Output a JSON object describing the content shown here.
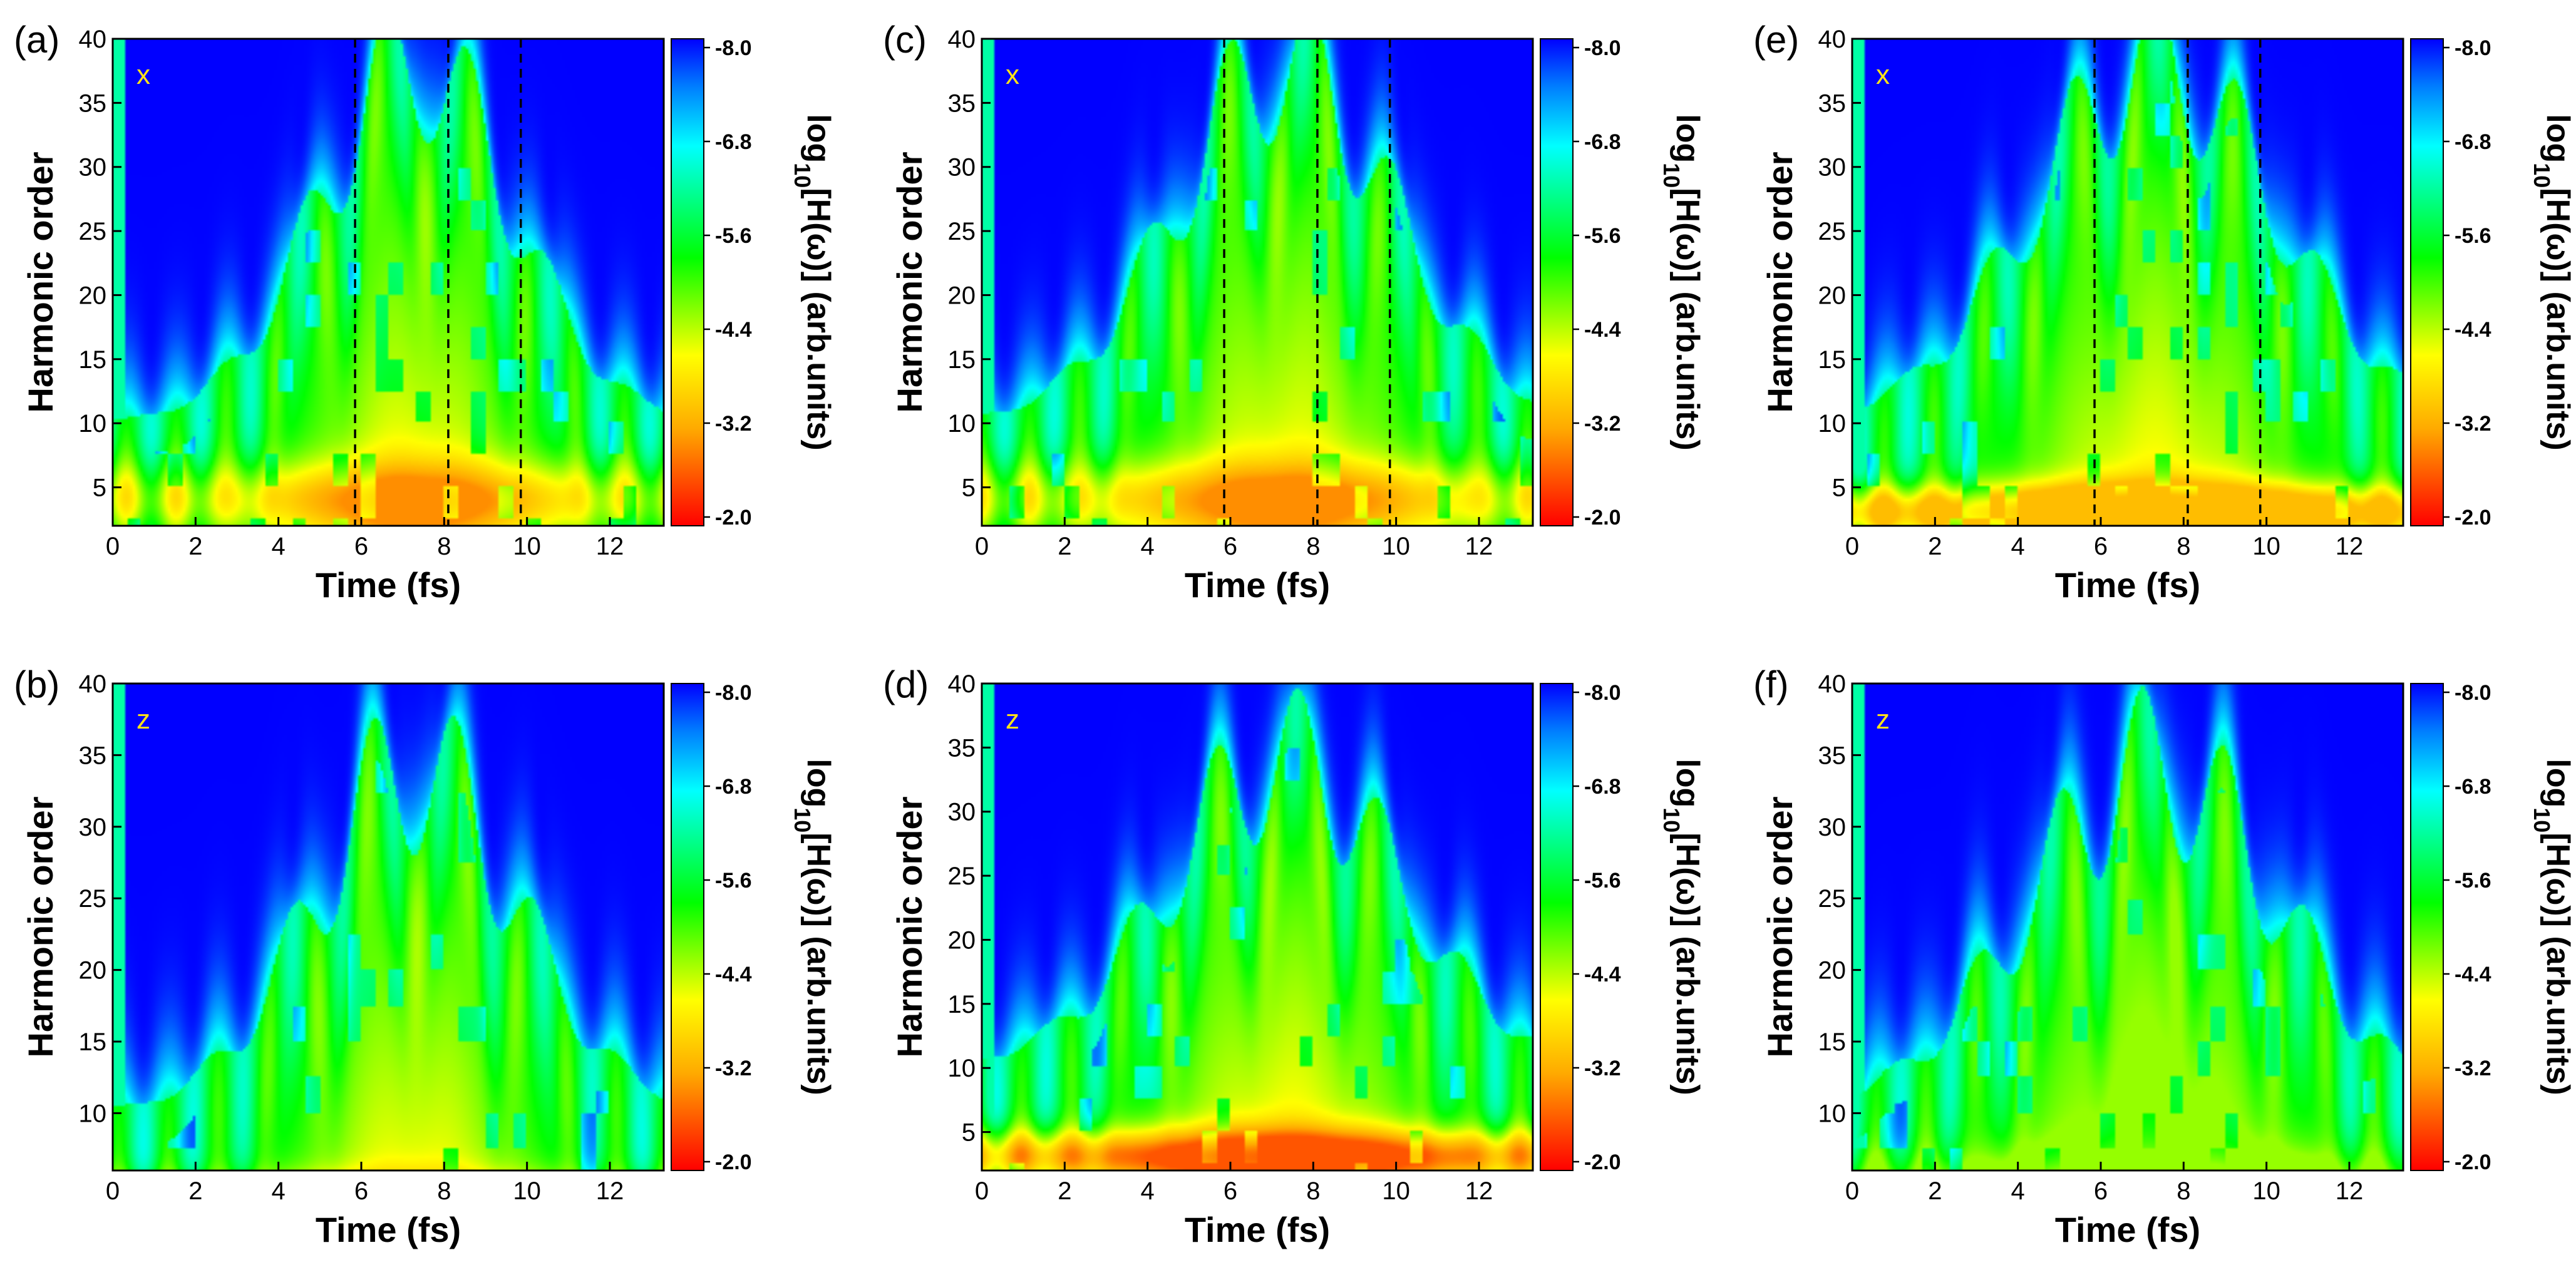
{
  "chart_data": [
    {
      "id": "a",
      "type": "heatmap",
      "panel_label": "(a)",
      "component": "x",
      "xlabel": "Time (fs)",
      "ylabel": "Harmonic order",
      "xlim": [
        0,
        13.3
      ],
      "ylim": [
        2,
        40
      ],
      "x_ticks": [
        0,
        2,
        4,
        6,
        8,
        10,
        12
      ],
      "y_ticks": [
        5,
        10,
        15,
        20,
        25,
        30,
        35,
        40
      ],
      "dashed_lines_x": [
        5.85,
        8.1,
        9.85
      ],
      "colorbar": {
        "title": "log10[H(ω)] (arb.units)",
        "ticks": [
          "-8.0",
          "-6.8",
          "-5.6",
          "-4.4",
          "-3.2",
          "-2.0"
        ]
      },
      "peak_level": -3.0
    },
    {
      "id": "b",
      "type": "heatmap",
      "panel_label": "(b)",
      "component": "z",
      "xlabel": "Time (fs)",
      "ylabel": "Harmonic order",
      "xlim": [
        0,
        13.3
      ],
      "ylim": [
        6,
        40
      ],
      "x_ticks": [
        0,
        2,
        4,
        6,
        8,
        10,
        12
      ],
      "y_ticks": [
        10,
        15,
        20,
        25,
        30,
        35,
        40
      ],
      "dashed_lines_x": [],
      "colorbar": {
        "title": "log10[H(ω)] (arb.units)",
        "ticks": [
          "-8.0",
          "-6.8",
          "-5.6",
          "-4.4",
          "-3.2",
          "-2.0"
        ]
      },
      "peak_level": -3.8
    },
    {
      "id": "c",
      "type": "heatmap",
      "panel_label": "(c)",
      "component": "x",
      "xlabel": "Time (fs)",
      "ylabel": "Harmonic order",
      "xlim": [
        0,
        13.3
      ],
      "ylim": [
        2,
        40
      ],
      "x_ticks": [
        0,
        2,
        4,
        6,
        8,
        10,
        12
      ],
      "y_ticks": [
        5,
        10,
        15,
        20,
        25,
        30,
        35,
        40
      ],
      "dashed_lines_x": [
        5.85,
        8.1,
        9.85
      ],
      "colorbar": {
        "title": "log10[H(ω)] (arb.units)",
        "ticks": [
          "-8.0",
          "-6.8",
          "-5.6",
          "-4.4",
          "-3.2",
          "-2.0"
        ]
      },
      "peak_level": -3.0
    },
    {
      "id": "d",
      "type": "heatmap",
      "panel_label": "(d)",
      "component": "z",
      "xlabel": "Time (fs)",
      "ylabel": "Harmonic order",
      "xlim": [
        0,
        13.3
      ],
      "ylim": [
        2,
        40
      ],
      "x_ticks": [
        0,
        2,
        4,
        6,
        8,
        10,
        12
      ],
      "y_ticks": [
        5,
        10,
        15,
        20,
        25,
        30,
        35,
        40
      ],
      "dashed_lines_x": [],
      "colorbar": {
        "title": "log10[H(ω)] (arb.units)",
        "ticks": [
          "-8.0",
          "-6.8",
          "-5.6",
          "-4.4",
          "-3.2",
          "-2.0"
        ]
      },
      "peak_level": -2.6
    },
    {
      "id": "e",
      "type": "heatmap",
      "panel_label": "(e)",
      "component": "x",
      "xlabel": "Time (fs)",
      "ylabel": "Harmonic order",
      "xlim": [
        0,
        13.3
      ],
      "ylim": [
        2,
        40
      ],
      "x_ticks": [
        0,
        2,
        4,
        6,
        8,
        10,
        12
      ],
      "y_ticks": [
        5,
        10,
        15,
        20,
        25,
        30,
        35,
        40
      ],
      "dashed_lines_x": [
        5.85,
        8.1,
        9.85
      ],
      "colorbar": {
        "title": "log10[H(ω)] (arb.units)",
        "ticks": [
          "-8.0",
          "-6.8",
          "-5.6",
          "-4.4",
          "-3.2",
          "-2.0"
        ]
      },
      "peak_level": -3.4
    },
    {
      "id": "f",
      "type": "heatmap",
      "panel_label": "(f)",
      "component": "z",
      "xlabel": "Time (fs)",
      "ylabel": "Harmonic order",
      "xlim": [
        0,
        13.3
      ],
      "ylim": [
        6,
        40
      ],
      "x_ticks": [
        0,
        2,
        4,
        6,
        8,
        10,
        12
      ],
      "y_ticks": [
        10,
        15,
        20,
        25,
        30,
        35,
        40
      ],
      "dashed_lines_x": [],
      "colorbar": {
        "title": "log10[H(ω)] (arb.units)",
        "ticks": [
          "-8.0",
          "-6.8",
          "-5.6",
          "-4.4",
          "-3.2",
          "-2.0"
        ]
      },
      "peak_level": -4.6
    }
  ],
  "colors": {
    "low": "#0000ff",
    "mid_low": "#00ffff",
    "mid": "#00ff00",
    "mid_high": "#ffff00",
    "high": "#ff0000",
    "component_label": "#ffe11a"
  }
}
